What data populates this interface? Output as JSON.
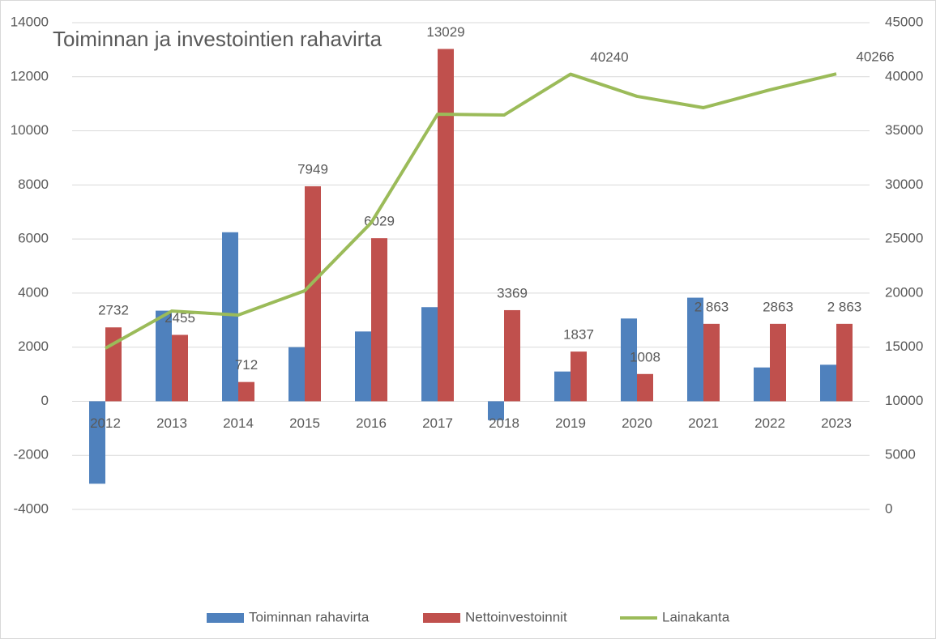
{
  "chart_data": {
    "type": "bar-line",
    "title": "Toiminnan ja investointien rahavirta",
    "categories": [
      "2012",
      "2013",
      "2014",
      "2015",
      "2016",
      "2017",
      "2018",
      "2019",
      "2020",
      "2021",
      "2022",
      "2023"
    ],
    "series": [
      {
        "name": "Toiminnan rahavirta",
        "type": "bar",
        "color": "#4f81bd",
        "values": [
          -3050,
          3350,
          6250,
          2000,
          2580,
          3480,
          -700,
          1100,
          3060,
          3830,
          1250,
          1350
        ]
      },
      {
        "name": "Nettoinvestoinnit",
        "type": "bar",
        "color": "#c0504d",
        "values": [
          2732,
          2455,
          712,
          7949,
          6029,
          13029,
          3369,
          1837,
          1008,
          2863,
          2863,
          2863
        ],
        "value_labels": [
          "2732",
          "2455",
          "712",
          "7949",
          "6029",
          "13029",
          "3369",
          "1837",
          "1008",
          "2 863",
          "2863",
          "2 863"
        ]
      },
      {
        "name": "Lainakanta",
        "type": "line",
        "axis": "y2",
        "color": "#9bbb59",
        "values": [
          14900,
          18340,
          17970,
          20220,
          26500,
          36540,
          36460,
          40240,
          38190,
          37140,
          38790,
          40266
        ],
        "value_labels": [
          null,
          null,
          null,
          null,
          null,
          null,
          null,
          "40240",
          null,
          null,
          null,
          "40266"
        ]
      }
    ],
    "ylim": [
      -4000,
      14000
    ],
    "yticks": [
      -4000,
      -2000,
      0,
      2000,
      4000,
      6000,
      8000,
      10000,
      12000,
      14000
    ],
    "y2lim": [
      0,
      45000
    ],
    "y2ticks": [
      0,
      5000,
      10000,
      15000,
      20000,
      25000,
      30000,
      35000,
      40000,
      45000
    ],
    "grid": true,
    "legend": "bottom"
  }
}
